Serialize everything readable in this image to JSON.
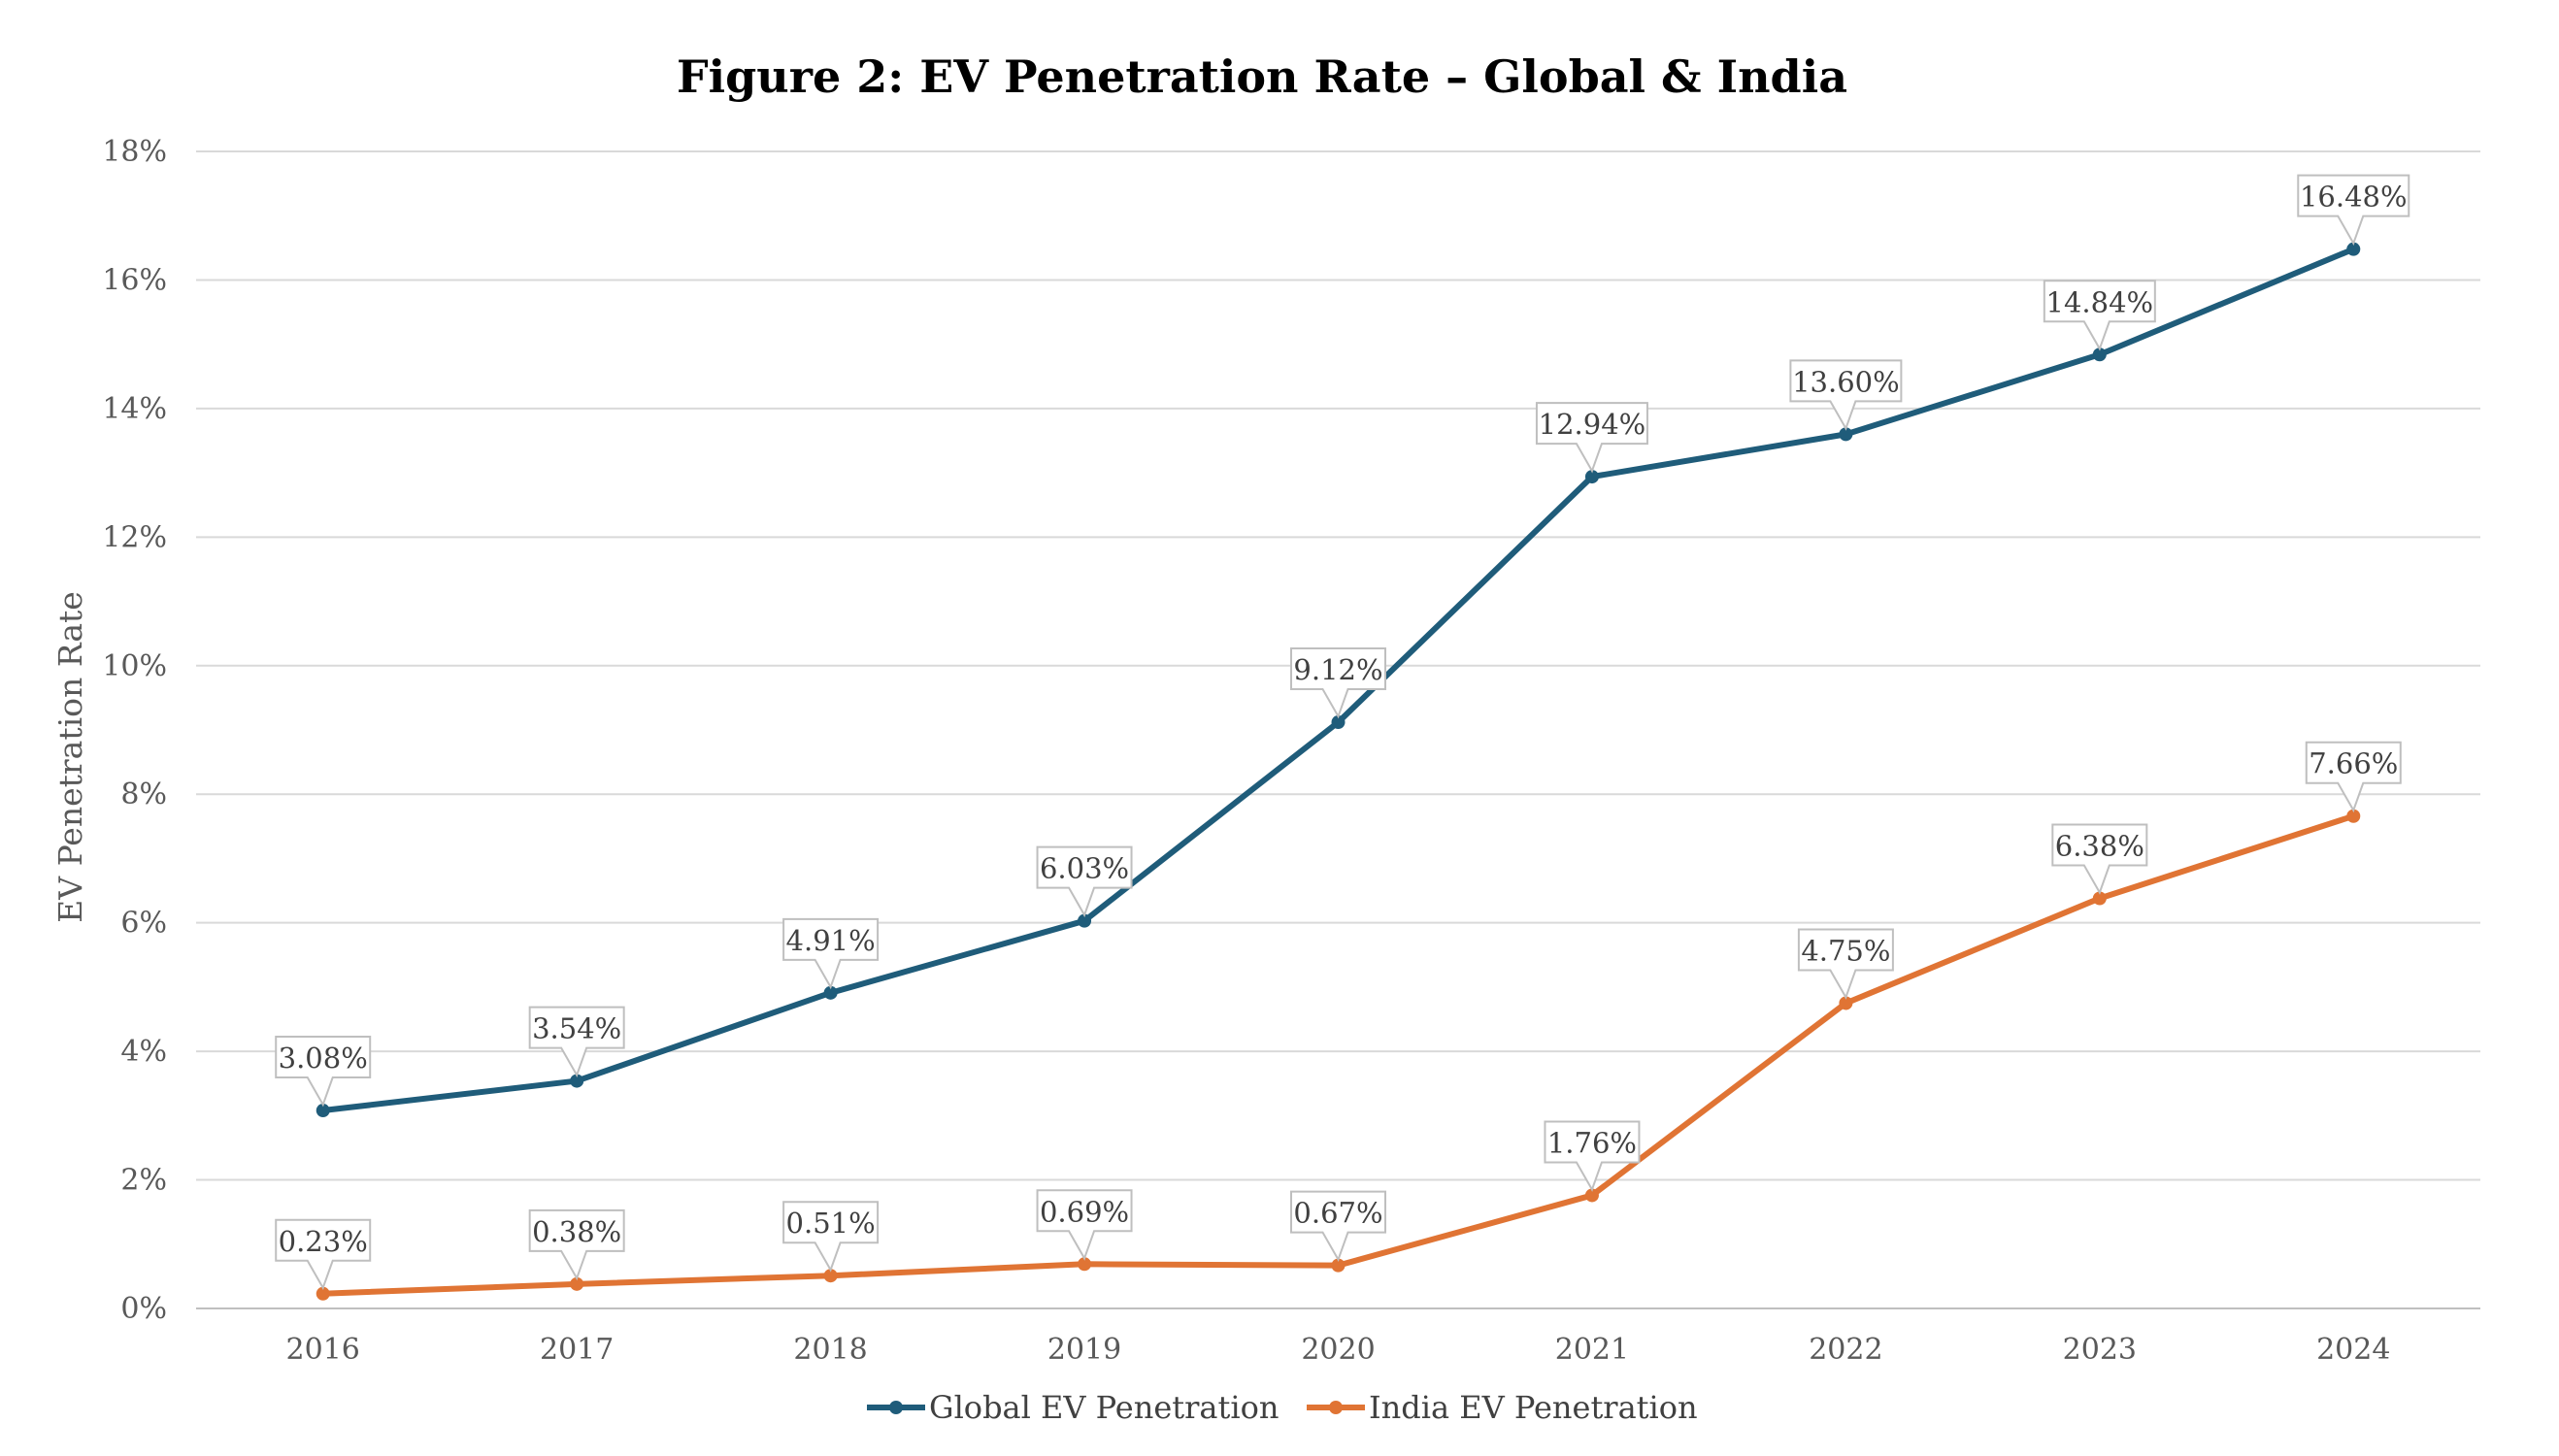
{
  "chart_data": {
    "type": "line",
    "title": "Figure 2: EV Penetration Rate – Global & India",
    "xlabel": "",
    "ylabel": "EV Penetration Rate",
    "ylim": [
      0,
      18
    ],
    "yticks": [
      "0%",
      "2%",
      "4%",
      "6%",
      "8%",
      "10%",
      "12%",
      "14%",
      "16%",
      "18%"
    ],
    "grid": true,
    "legend_position": "bottom",
    "categories": [
      "2016",
      "2017",
      "2018",
      "2019",
      "2020",
      "2021",
      "2022",
      "2023",
      "2024"
    ],
    "series": [
      {
        "name": "Global EV Penetration",
        "color": "#1f5c7a",
        "values": [
          3.08,
          3.54,
          4.91,
          6.03,
          9.12,
          12.94,
          13.6,
          14.84,
          16.48
        ],
        "labels": [
          "3.08%",
          "3.54%",
          "4.91%",
          "6.03%",
          "9.12%",
          "12.94%",
          "13.60%",
          "14.84%",
          "16.48%"
        ]
      },
      {
        "name": "India EV Penetration",
        "color": "#e07434",
        "values": [
          0.23,
          0.38,
          0.51,
          0.69,
          0.67,
          1.76,
          4.75,
          6.38,
          7.66
        ],
        "labels": [
          "0.23%",
          "0.38%",
          "0.51%",
          "0.69%",
          "0.67%",
          "1.76%",
          "4.75%",
          "6.38%",
          "7.66%"
        ]
      }
    ]
  }
}
